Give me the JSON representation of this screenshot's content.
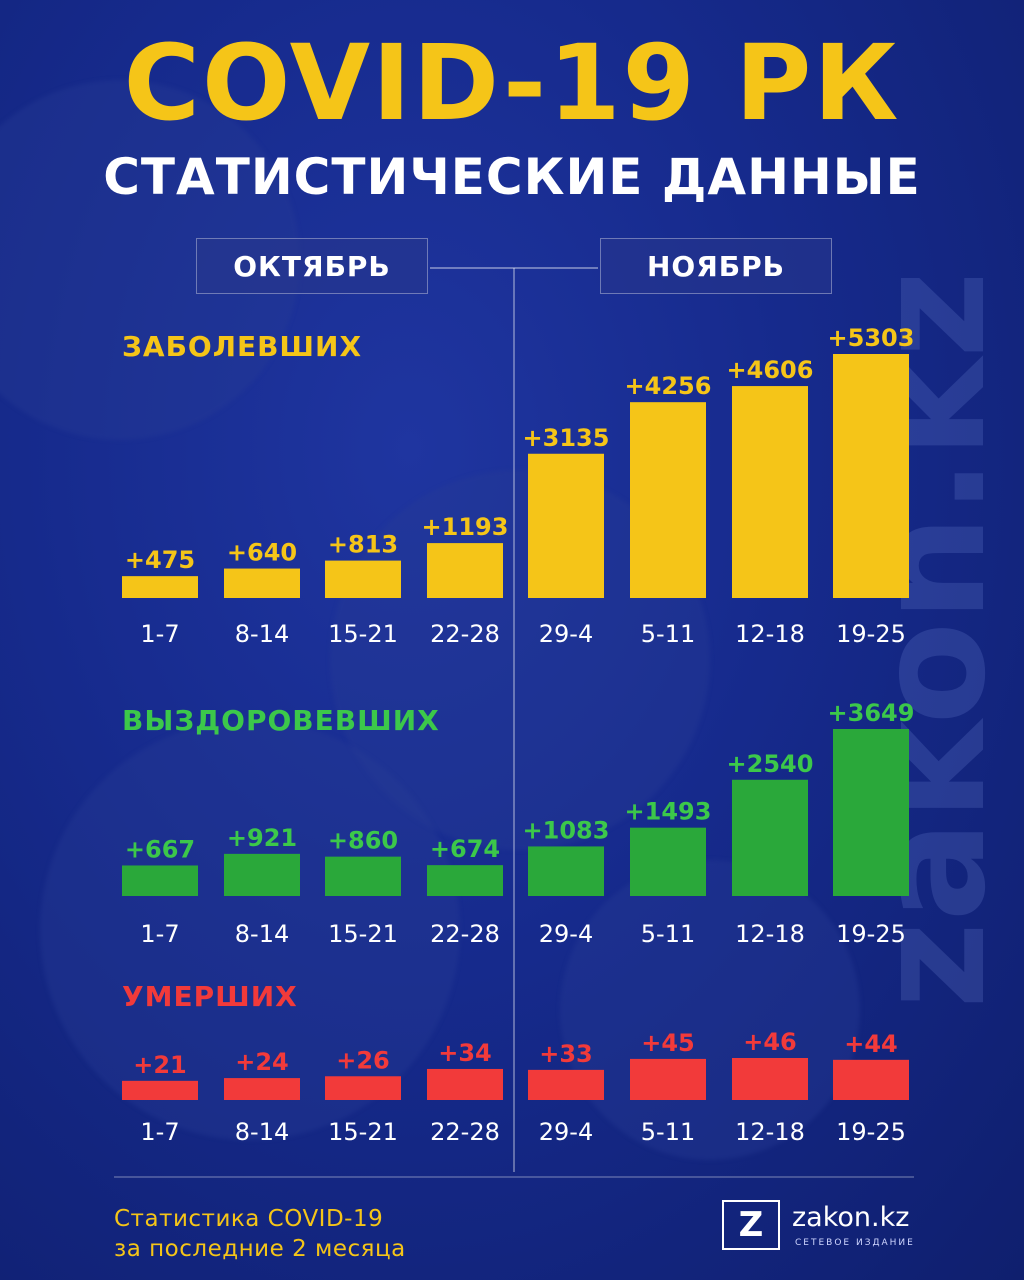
{
  "header": {
    "title": "COVID-19 РК",
    "subtitle": "СТАТИСТИЧЕСКИЕ ДАННЫЕ"
  },
  "months": {
    "left": "ОКТЯБРЬ",
    "right": "НОЯБРЬ"
  },
  "watermark": "zakon.kz",
  "colors": {
    "background": "#162a8c",
    "accent_yellow": "#f5c518",
    "green": "#2aa83a",
    "red": "#f23a3a",
    "label_green": "#3cc84a"
  },
  "chart_data": [
    {
      "type": "bar",
      "title": "ЗАБОЛЕВШИХ",
      "categories": [
        "1-7",
        "8-14",
        "15-21",
        "22-28",
        "29-4",
        "5-11",
        "12-18",
        "19-25"
      ],
      "values": [
        475,
        640,
        813,
        1193,
        3135,
        4256,
        4606,
        5303
      ],
      "value_labels": [
        "+475",
        "+640",
        "+813",
        "+1193",
        "+3135",
        "+4256",
        "+4606",
        "+5303"
      ],
      "color": "#f5c518"
    },
    {
      "type": "bar",
      "title": "ВЫЗДОРОВЕВШИХ",
      "categories": [
        "1-7",
        "8-14",
        "15-21",
        "22-28",
        "29-4",
        "5-11",
        "12-18",
        "19-25"
      ],
      "values": [
        667,
        921,
        860,
        674,
        1083,
        1493,
        2540,
        3649
      ],
      "value_labels": [
        "+667",
        "+921",
        "+860",
        "+674",
        "+1083",
        "+1493",
        "+2540",
        "+3649"
      ],
      "color": "#2aa83a"
    },
    {
      "type": "bar",
      "title": "УМЕРШИХ",
      "categories": [
        "1-7",
        "8-14",
        "15-21",
        "22-28",
        "29-4",
        "5-11",
        "12-18",
        "19-25"
      ],
      "values": [
        21,
        24,
        26,
        34,
        33,
        45,
        46,
        44
      ],
      "value_labels": [
        "+21",
        "+24",
        "+26",
        "+34",
        "+33",
        "+45",
        "+46",
        "+44"
      ],
      "color": "#f23a3a"
    }
  ],
  "footer": {
    "line1": "Статистика COVID-19",
    "line2": "за последние 2 месяца",
    "logo_letter": "Z",
    "logo_name": "zakon.kz",
    "logo_sub": "СЕТЕВОЕ ИЗДАНИЕ"
  }
}
